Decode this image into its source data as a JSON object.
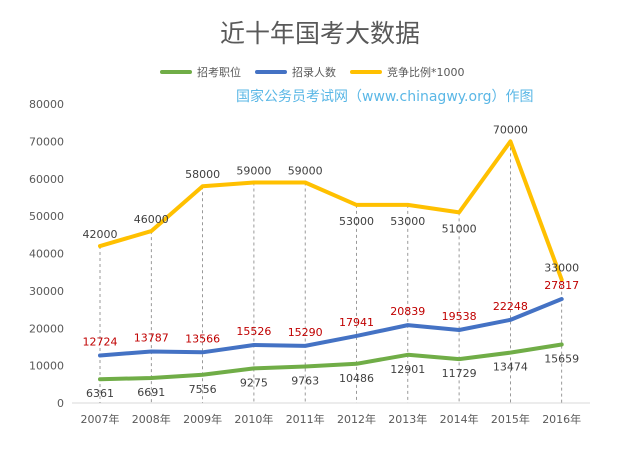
{
  "chart_data": {
    "type": "line",
    "title": "近十年国考大数据",
    "watermark": "国家公务员考试网（www.chinagwy.org）作图",
    "categories": [
      "2007年",
      "2008年",
      "2009年",
      "2010年",
      "2011年",
      "2012年",
      "2013年",
      "2014年",
      "2015年",
      "2016年"
    ],
    "ylim": [
      0,
      80000
    ],
    "yticks": [
      "0",
      "10000",
      "20000",
      "30000",
      "40000",
      "50000",
      "60000",
      "70000",
      "80000"
    ],
    "grid": false,
    "legend_position": "top-center",
    "series": [
      {
        "name": "招考职位",
        "color": "#70ad47",
        "label_color": "#404040",
        "values": [
          6361,
          6691,
          7556,
          9275,
          9763,
          10486,
          12901,
          11729,
          13474,
          15659
        ],
        "labels": [
          "6361",
          "6691",
          "7556",
          "9275",
          "9763",
          "10486",
          "12901",
          "11729",
          "13474",
          "15659"
        ]
      },
      {
        "name": "招录人数",
        "color": "#4472c4",
        "label_color": "#c00000",
        "values": [
          12724,
          13787,
          13566,
          15526,
          15290,
          17941,
          20839,
          19538,
          22248,
          27817
        ],
        "labels": [
          "12724",
          "13787",
          "13566",
          "15526",
          "15290",
          "17941",
          "20839",
          "19538",
          "22248",
          "27817"
        ]
      },
      {
        "name": "竞争比例*1000",
        "color": "#ffc000",
        "label_color": "#404040",
        "values": [
          42000,
          46000,
          58000,
          59000,
          59000,
          53000,
          53000,
          51000,
          70000,
          33000
        ],
        "labels": [
          "42000",
          "46000",
          "58000",
          "59000",
          "59000",
          "53000",
          "53000",
          "51000",
          "70000",
          "33000"
        ]
      }
    ]
  }
}
